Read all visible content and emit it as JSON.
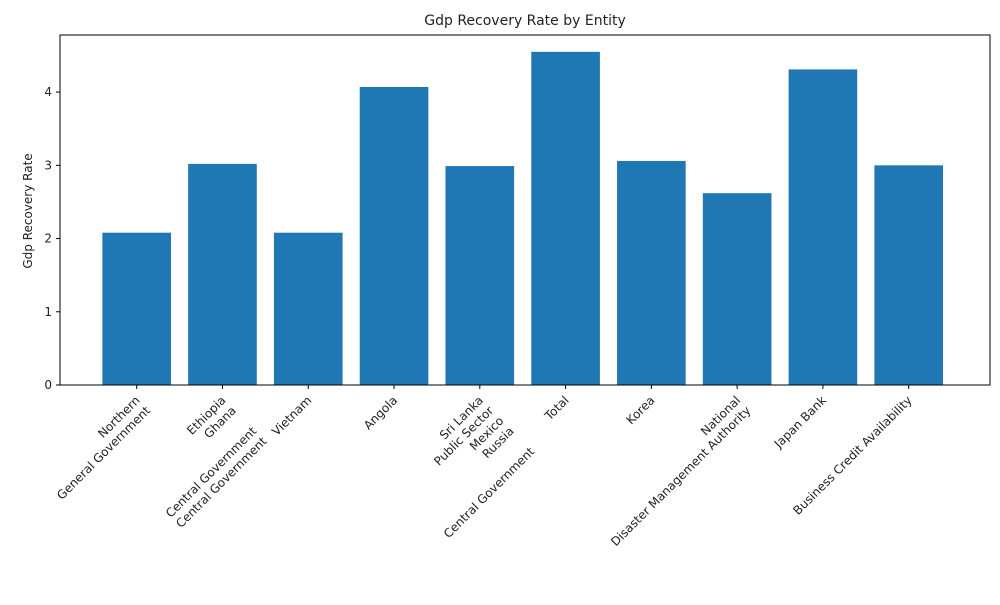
{
  "chart_data": {
    "type": "bar",
    "title": "Gdp Recovery Rate by Entity",
    "xlabel": "",
    "ylabel": "Gdp Recovery Rate",
    "ylim": [
      0,
      4.78
    ],
    "yticks": [
      0,
      1,
      2,
      3,
      4
    ],
    "categories": [
      "Northern\nGeneral Government",
      "Ethiopia\nGhana\n\nCentral Government\nCentral Government",
      "Vietnam",
      "Angola",
      "Sri Lanka\nPublic Sector\nMexico\nRussia\n\nCentral Government",
      "Total",
      "Korea",
      "National\nDisaster Management Authority",
      "Japan Bank",
      "Business Credit Availability"
    ],
    "values": [
      2.08,
      3.02,
      2.08,
      4.07,
      2.99,
      4.55,
      3.06,
      2.62,
      4.31,
      3.0
    ],
    "bar_color": "#1f77b4",
    "grid": false,
    "legend": "none"
  }
}
